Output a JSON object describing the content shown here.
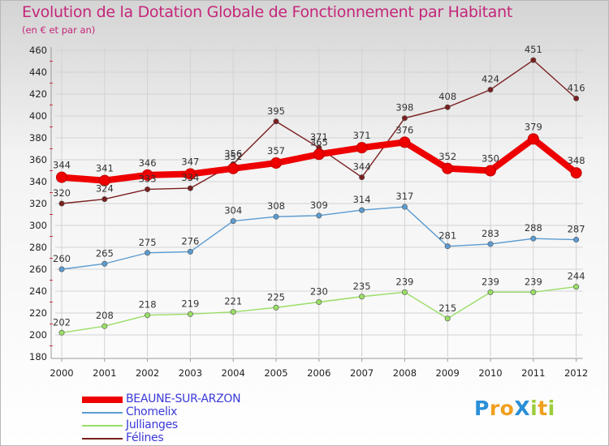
{
  "header": {
    "title": "Evolution de la Dotation Globale de Fonctionnement par Habitant",
    "subtitle": "(en € et par an)"
  },
  "logo": {
    "text": "ProXiti",
    "letters": [
      {
        "ch": "P",
        "color": "#2a8fd8"
      },
      {
        "ch": "r",
        "color": "#f0a020"
      },
      {
        "ch": "o",
        "color": "#f0a020"
      },
      {
        "ch": "X",
        "color": "#2a8fd8"
      },
      {
        "ch": "i",
        "color": "#9ccc3a"
      },
      {
        "ch": "t",
        "color": "#f0a020"
      },
      {
        "ch": "i",
        "color": "#9ccc3a"
      }
    ]
  },
  "chart_data": {
    "type": "line",
    "title": "Evolution de la Dotation Globale de Fonctionnement par Habitant",
    "subtitle": "(en € et par an)",
    "x": [
      "2000",
      "2001",
      "2002",
      "2003",
      "2004",
      "2005",
      "2006",
      "2007",
      "2008",
      "2009",
      "2010",
      "2011",
      "2012"
    ],
    "ylim": [
      180,
      460
    ],
    "yticks": [
      180,
      200,
      220,
      240,
      260,
      280,
      300,
      320,
      340,
      360,
      380,
      400,
      420,
      440,
      460
    ],
    "grid": true,
    "legend_position": "bottom-left",
    "series": [
      {
        "name": "BEAUNE-SUR-ARZON",
        "color": "#ee0000",
        "width": "thick",
        "values": [
          344,
          341,
          346,
          347,
          352,
          357,
          365,
          371,
          376,
          352,
          350,
          379,
          348
        ]
      },
      {
        "name": "Chomelix",
        "color": "#5b9bd0",
        "width": "thin",
        "values": [
          260,
          265,
          275,
          276,
          304,
          308,
          309,
          314,
          317,
          281,
          283,
          288,
          287
        ]
      },
      {
        "name": "Jullianges",
        "color": "#99dd66",
        "width": "thin",
        "values": [
          202,
          208,
          218,
          219,
          221,
          225,
          230,
          235,
          239,
          215,
          239,
          239,
          244
        ]
      },
      {
        "name": "Félines",
        "color": "#7a1f1f",
        "width": "thin",
        "values": [
          320,
          324,
          333,
          334,
          356,
          395,
          371,
          344,
          398,
          408,
          424,
          451,
          416
        ]
      }
    ]
  }
}
